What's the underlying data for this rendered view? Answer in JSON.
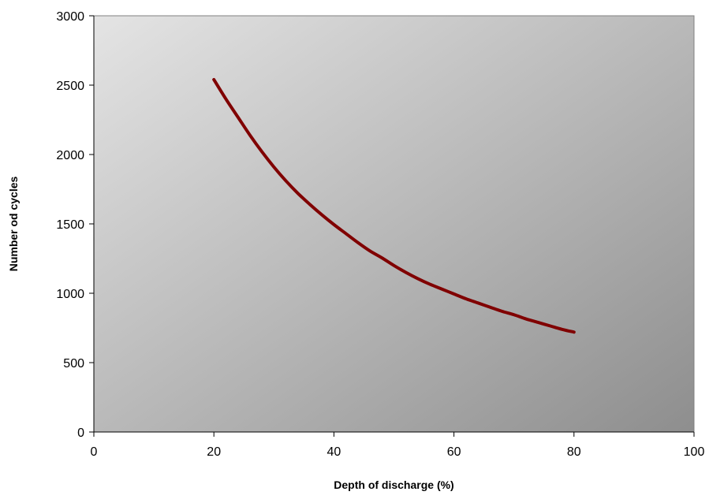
{
  "chart_data": {
    "type": "line",
    "title": "",
    "xlabel": "Depth of discharge (%)",
    "ylabel": "Number od cycles",
    "xlim": [
      0,
      100
    ],
    "ylim": [
      0,
      3000
    ],
    "x_ticks": [
      0,
      20,
      40,
      60,
      80,
      100
    ],
    "y_ticks": [
      0,
      500,
      1000,
      1500,
      2000,
      2500,
      3000
    ],
    "grid": false,
    "legend": "none",
    "plot_background": "gradient light-gray to dark-gray",
    "series": [
      {
        "color": "#800000",
        "x": [
          20,
          22,
          24,
          26,
          28,
          30,
          32,
          34,
          36,
          38,
          40,
          42,
          44,
          46,
          48,
          50,
          52,
          54,
          56,
          58,
          60,
          62,
          64,
          66,
          68,
          70,
          72,
          74,
          76,
          78,
          80
        ],
        "y": [
          2540,
          2400,
          2270,
          2140,
          2020,
          1910,
          1810,
          1720,
          1640,
          1565,
          1495,
          1430,
          1365,
          1305,
          1255,
          1200,
          1150,
          1105,
          1065,
          1030,
          995,
          960,
          930,
          900,
          870,
          845,
          815,
          790,
          765,
          740,
          720
        ]
      }
    ]
  }
}
